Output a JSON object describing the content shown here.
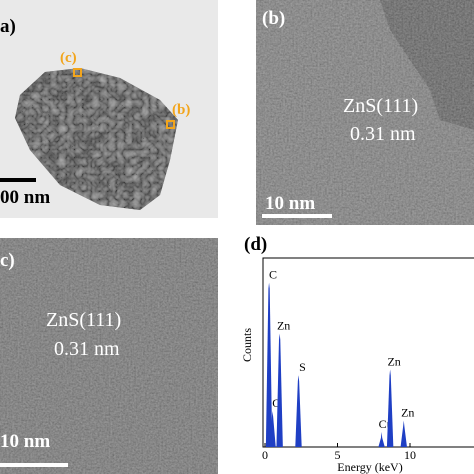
{
  "panels": {
    "a": {
      "label": "a)",
      "markers": [
        "(c)",
        "(b)"
      ],
      "scale_bar": "00 nm"
    },
    "b": {
      "label": "(b)",
      "lattice": "ZnS(111)",
      "spacing": "0.31 nm",
      "scale_bar": "10 nm"
    },
    "c": {
      "label": "c)",
      "lattice": "ZnS(111)",
      "spacing": "0.31 nm",
      "scale_bar": "10 nm"
    }
  },
  "chart_data": {
    "type": "spectrum",
    "label": "(d)",
    "x_label": "Energy (keV)",
    "y_label": "Counts",
    "xlim": [
      0,
      14.5
    ],
    "ylim": [
      0,
      1
    ],
    "xticks": [
      0,
      5,
      10
    ],
    "color": "#1f3fc4",
    "peak_labels": [
      "C",
      "O",
      "Zn",
      "S",
      "Cu",
      "Zn",
      "Zn"
    ],
    "x": [
      0.28,
      0.52,
      1.01,
      2.31,
      8.04,
      8.63,
      9.57
    ],
    "values": [
      0.87,
      0.19,
      0.6,
      0.38,
      0.08,
      0.41,
      0.14
    ]
  }
}
